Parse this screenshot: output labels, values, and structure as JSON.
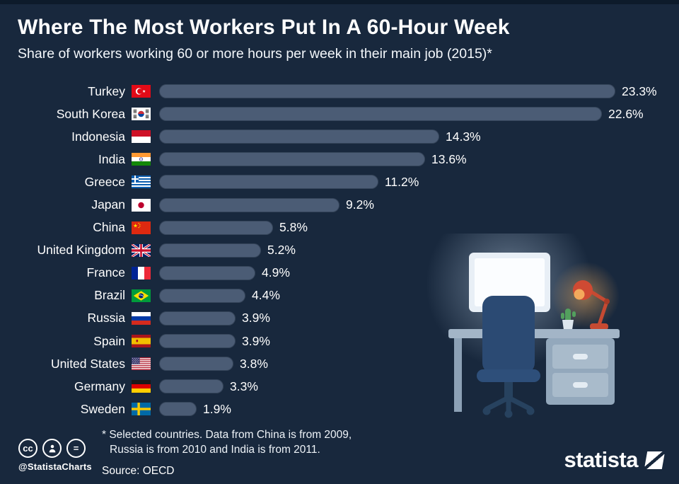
{
  "chart_data": {
    "type": "bar",
    "orientation": "horizontal",
    "title": "Where The Most Workers Put In A 60-Hour Week",
    "subtitle": "Share of workers working 60 or more hours per week in their main job (2015)*",
    "categories": [
      "Turkey",
      "South Korea",
      "Indonesia",
      "India",
      "Greece",
      "Japan",
      "China",
      "United Kingdom",
      "France",
      "Brazil",
      "Russia",
      "Spain",
      "United States",
      "Germany",
      "Sweden"
    ],
    "values": [
      23.3,
      22.6,
      14.3,
      13.6,
      11.2,
      9.2,
      5.8,
      5.2,
      4.9,
      4.4,
      3.9,
      3.9,
      3.8,
      3.3,
      1.9
    ],
    "value_labels": [
      "23.3%",
      "22.6%",
      "14.3%",
      "13.6%",
      "11.2%",
      "9.2%",
      "5.8%",
      "5.2%",
      "4.9%",
      "4.4%",
      "3.9%",
      "3.9%",
      "3.8%",
      "3.3%",
      "1.9%"
    ],
    "flags": [
      "tr",
      "kr",
      "id",
      "in",
      "gr",
      "jp",
      "cn",
      "gb",
      "fr",
      "br",
      "ru",
      "es",
      "us",
      "de",
      "se"
    ],
    "unit": "%",
    "xlim": [
      0,
      23.3
    ],
    "grid": false,
    "legend": false,
    "bar_color": "#4b5c75",
    "background_color": "#18283d"
  },
  "footer": {
    "note_line1": "* Selected countries. Data from China is from 2009,",
    "note_line2": "Russia is from 2010 and India is from 2011.",
    "source": "Source: OECD",
    "credit": "@StatistaCharts",
    "license_badges": [
      "cc",
      "by",
      "nd"
    ],
    "cc_label": "cc",
    "nd_label": "=",
    "brand": "statista"
  }
}
